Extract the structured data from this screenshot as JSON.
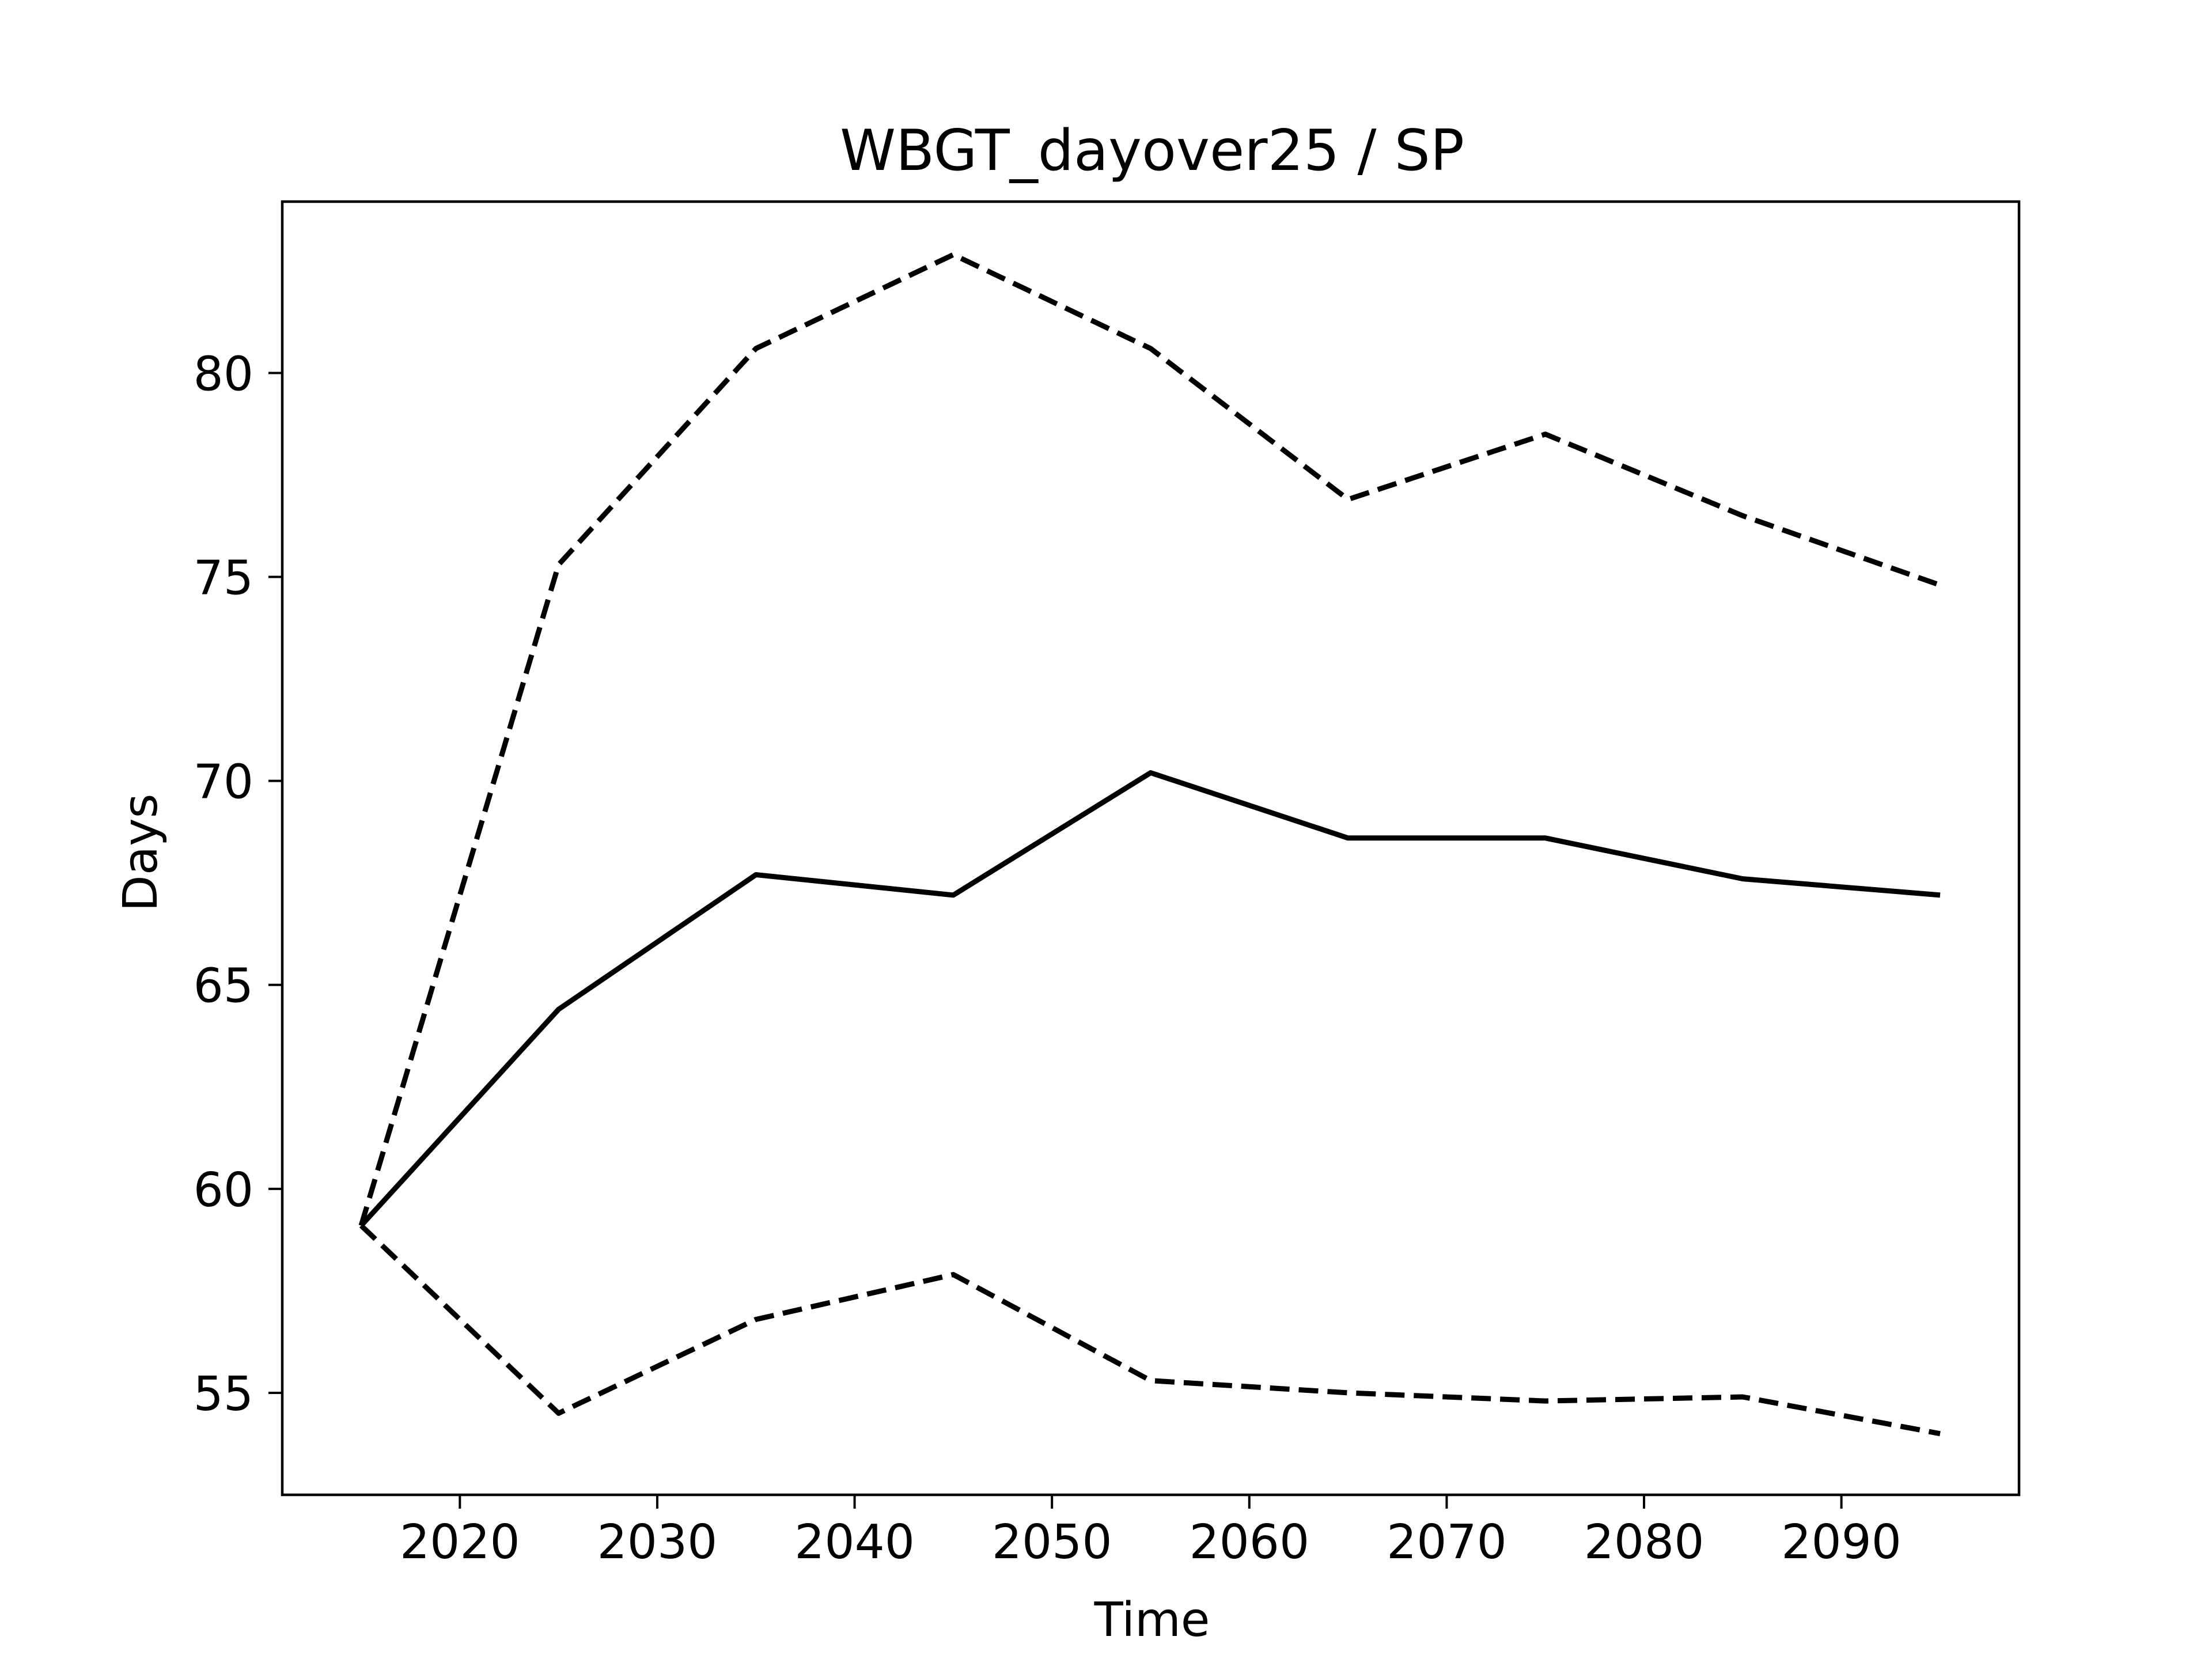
{
  "chart_data": {
    "type": "line",
    "title": "WBGT_dayover25 / SP",
    "xlabel": "Time",
    "ylabel": "Days",
    "x": [
      2015,
      2025,
      2035,
      2045,
      2055,
      2065,
      2075,
      2085,
      2095
    ],
    "xlim": [
      2011,
      2099
    ],
    "ylim": [
      52.5,
      84.2
    ],
    "xticks": [
      2020,
      2030,
      2040,
      2050,
      2060,
      2070,
      2080,
      2090
    ],
    "yticks": [
      55,
      60,
      65,
      70,
      75,
      80
    ],
    "grid": false,
    "legend": "none",
    "series": [
      {
        "style": "dashed",
        "color": "#000000",
        "values": [
          59.1,
          75.3,
          80.6,
          82.9,
          80.6,
          76.9,
          78.5,
          76.5,
          74.8
        ]
      },
      {
        "style": "solid",
        "color": "#000000",
        "values": [
          59.1,
          64.4,
          67.7,
          67.2,
          70.2,
          68.6,
          68.6,
          67.6,
          67.2
        ]
      },
      {
        "style": "dashed",
        "color": "#000000",
        "values": [
          59.1,
          54.5,
          56.8,
          57.9,
          55.3,
          55.0,
          54.8,
          54.9,
          54.0
        ]
      }
    ]
  }
}
